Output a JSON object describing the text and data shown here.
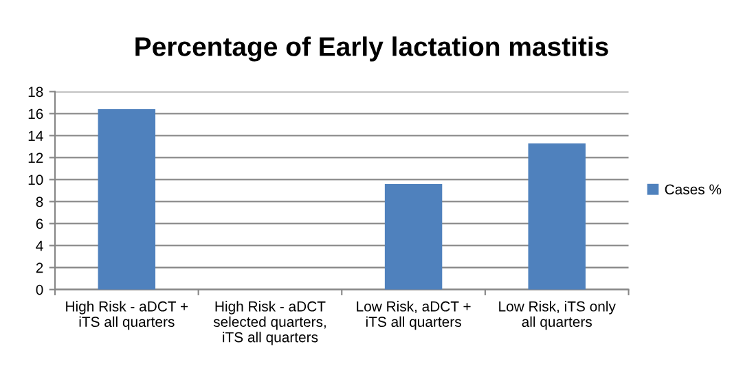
{
  "chart_data": {
    "type": "bar",
    "title": "Percentage of Early lactation mastitis",
    "categories": [
      "High Risk - aDCT +\niTS all quarters",
      "High Risk - aDCT\nselected quarters,\niTS all quarters",
      "Low Risk, aDCT +\niTS all quarters",
      "Low Risk, iTS only\nall quarters"
    ],
    "series": [
      {
        "name": "Cases %",
        "color": "#4f81bd",
        "values": [
          16.4,
          0,
          9.6,
          13.3
        ]
      }
    ],
    "ylim": [
      0,
      18
    ],
    "yticks": [
      0,
      2,
      4,
      6,
      8,
      10,
      12,
      14,
      16,
      18
    ],
    "grid": "y",
    "legend": "right"
  }
}
